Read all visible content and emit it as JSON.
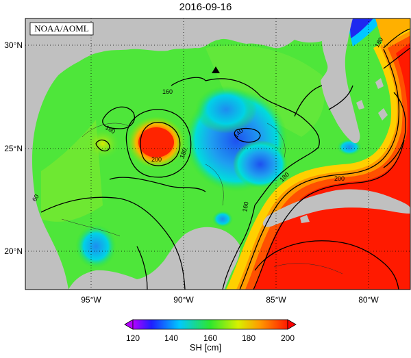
{
  "title": "2016-09-16",
  "source_label": "NOAA/AOML",
  "lat_labels": [
    {
      "label": "30°N",
      "value": 30
    },
    {
      "label": "25°N",
      "value": 25
    },
    {
      "label": "20°N",
      "value": 20
    }
  ],
  "lon_labels": [
    {
      "label": "95°W",
      "value": -95
    },
    {
      "label": "90°W",
      "value": -90
    },
    {
      "label": "85°W",
      "value": -85
    },
    {
      "label": "80°W",
      "value": -80
    }
  ],
  "contour_labels": [
    "160",
    "160",
    "160",
    "160",
    "180",
    "180",
    "180",
    "180",
    "200",
    "200",
    "140",
    "60"
  ],
  "colorbar": {
    "label": "SH [cm]",
    "ticks": [
      "120",
      "140",
      "160",
      "180",
      "200"
    ],
    "min": 120,
    "max": 200,
    "extend": "both"
  },
  "colors": {
    "land": "#c0c0c0",
    "ocean_low": "#0a1ef0",
    "ocean_mid": "#2ee62e",
    "ocean_high": "#ff1a00",
    "frame": "#000000"
  },
  "marker": "triangle"
}
